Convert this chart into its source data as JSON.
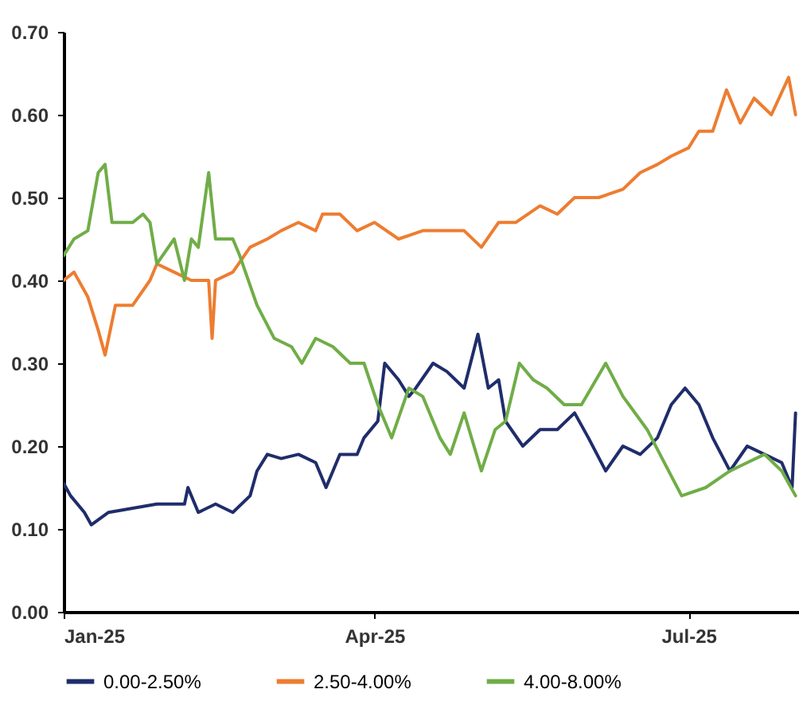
{
  "chart_data": {
    "type": "line",
    "ylim": [
      0,
      0.7
    ],
    "yticks": [
      {
        "value": 0,
        "label": "0.00"
      },
      {
        "value": 0.1,
        "label": "0.10"
      },
      {
        "value": 0.2,
        "label": "0.20"
      },
      {
        "value": 0.3,
        "label": "0.30"
      },
      {
        "value": 0.4,
        "label": "0.40"
      },
      {
        "value": 0.5,
        "label": "0.50"
      },
      {
        "value": 0.6,
        "label": "0.60"
      },
      {
        "value": 0.7,
        "label": "0.70"
      }
    ],
    "xlim": [
      "2025-01-01",
      "2025-08-02"
    ],
    "xticks": [
      {
        "value": "2025-01-01",
        "label": "Jan-25"
      },
      {
        "value": "2025-04-01",
        "label": "Apr-25"
      },
      {
        "value": "2025-07-01",
        "label": "Jul-25"
      }
    ],
    "grid": false,
    "legend": "bottom",
    "marker": "none",
    "line_style": "solid",
    "series": [
      {
        "name": "0.00-2.50%",
        "color": "#1f2d6b",
        "x": [
          "2025-01-01",
          "2025-01-03",
          "2025-01-07",
          "2025-01-09",
          "2025-01-14",
          "2025-01-21",
          "2025-01-28",
          "2025-02-05",
          "2025-02-06",
          "2025-02-09",
          "2025-02-14",
          "2025-02-19",
          "2025-02-24",
          "2025-02-26",
          "2025-03-01",
          "2025-03-05",
          "2025-03-10",
          "2025-03-15",
          "2025-03-18",
          "2025-03-22",
          "2025-03-27",
          "2025-03-29",
          "2025-04-02",
          "2025-04-04",
          "2025-04-08",
          "2025-04-11",
          "2025-04-13",
          "2025-04-18",
          "2025-04-22",
          "2025-04-27",
          "2025-05-01",
          "2025-05-04",
          "2025-05-07",
          "2025-05-09",
          "2025-05-14",
          "2025-05-19",
          "2025-05-24",
          "2025-05-29",
          "2025-06-02",
          "2025-06-07",
          "2025-06-12",
          "2025-06-17",
          "2025-06-22",
          "2025-06-26",
          "2025-06-30",
          "2025-07-04",
          "2025-07-08",
          "2025-07-13",
          "2025-07-18",
          "2025-07-23",
          "2025-07-28",
          "2025-07-31",
          "2025-08-01"
        ],
        "values": [
          0.155,
          0.14,
          0.12,
          0.105,
          0.12,
          0.125,
          0.13,
          0.13,
          0.15,
          0.12,
          0.13,
          0.12,
          0.14,
          0.17,
          0.19,
          0.185,
          0.19,
          0.18,
          0.15,
          0.19,
          0.19,
          0.21,
          0.23,
          0.3,
          0.28,
          0.26,
          0.27,
          0.3,
          0.29,
          0.27,
          0.335,
          0.27,
          0.28,
          0.23,
          0.2,
          0.22,
          0.22,
          0.24,
          0.21,
          0.17,
          0.2,
          0.19,
          0.21,
          0.25,
          0.27,
          0.25,
          0.21,
          0.17,
          0.2,
          0.19,
          0.18,
          0.15,
          0.24
        ]
      },
      {
        "name": "2.50-4.00%",
        "color": "#ed7d31",
        "x": [
          "2025-01-01",
          "2025-01-04",
          "2025-01-08",
          "2025-01-11",
          "2025-01-13",
          "2025-01-16",
          "2025-01-21",
          "2025-01-26",
          "2025-01-28",
          "2025-02-02",
          "2025-02-07",
          "2025-02-12",
          "2025-02-13",
          "2025-02-14",
          "2025-02-19",
          "2025-02-24",
          "2025-03-01",
          "2025-03-05",
          "2025-03-10",
          "2025-03-15",
          "2025-03-17",
          "2025-03-22",
          "2025-03-27",
          "2025-04-01",
          "2025-04-08",
          "2025-04-15",
          "2025-04-22",
          "2025-04-27",
          "2025-05-02",
          "2025-05-07",
          "2025-05-12",
          "2025-05-19",
          "2025-05-24",
          "2025-05-29",
          "2025-06-05",
          "2025-06-12",
          "2025-06-17",
          "2025-06-22",
          "2025-06-26",
          "2025-07-01",
          "2025-07-04",
          "2025-07-08",
          "2025-07-12",
          "2025-07-16",
          "2025-07-20",
          "2025-07-25",
          "2025-07-30",
          "2025-08-01"
        ],
        "values": [
          0.4,
          0.41,
          0.38,
          0.34,
          0.31,
          0.37,
          0.37,
          0.4,
          0.42,
          0.41,
          0.4,
          0.4,
          0.33,
          0.4,
          0.41,
          0.44,
          0.45,
          0.46,
          0.47,
          0.46,
          0.48,
          0.48,
          0.46,
          0.47,
          0.45,
          0.46,
          0.46,
          0.46,
          0.44,
          0.47,
          0.47,
          0.49,
          0.48,
          0.5,
          0.5,
          0.51,
          0.53,
          0.54,
          0.55,
          0.56,
          0.58,
          0.58,
          0.63,
          0.59,
          0.62,
          0.6,
          0.645,
          0.6
        ]
      },
      {
        "name": "4.00-8.00%",
        "color": "#70ad47",
        "x": [
          "2025-01-01",
          "2025-01-04",
          "2025-01-08",
          "2025-01-11",
          "2025-01-13",
          "2025-01-15",
          "2025-01-21",
          "2025-01-24",
          "2025-01-26",
          "2025-01-28",
          "2025-02-02",
          "2025-02-05",
          "2025-02-07",
          "2025-02-09",
          "2025-02-12",
          "2025-02-14",
          "2025-02-19",
          "2025-02-21",
          "2025-02-26",
          "2025-03-03",
          "2025-03-08",
          "2025-03-11",
          "2025-03-15",
          "2025-03-20",
          "2025-03-25",
          "2025-03-29",
          "2025-04-02",
          "2025-04-06",
          "2025-04-11",
          "2025-04-15",
          "2025-04-20",
          "2025-04-23",
          "2025-04-27",
          "2025-05-02",
          "2025-05-06",
          "2025-05-09",
          "2025-05-13",
          "2025-05-17",
          "2025-05-21",
          "2025-05-26",
          "2025-05-31",
          "2025-06-07",
          "2025-06-12",
          "2025-06-19",
          "2025-06-24",
          "2025-06-29",
          "2025-07-06",
          "2025-07-13",
          "2025-07-18",
          "2025-07-23",
          "2025-07-28",
          "2025-08-01"
        ],
        "values": [
          0.43,
          0.45,
          0.46,
          0.53,
          0.54,
          0.47,
          0.47,
          0.48,
          0.47,
          0.42,
          0.45,
          0.4,
          0.45,
          0.44,
          0.53,
          0.45,
          0.45,
          0.43,
          0.37,
          0.33,
          0.32,
          0.3,
          0.33,
          0.32,
          0.3,
          0.3,
          0.25,
          0.21,
          0.27,
          0.26,
          0.21,
          0.19,
          0.24,
          0.17,
          0.22,
          0.23,
          0.3,
          0.28,
          0.27,
          0.25,
          0.25,
          0.3,
          0.26,
          0.22,
          0.18,
          0.14,
          0.15,
          0.17,
          0.18,
          0.19,
          0.17,
          0.14
        ]
      }
    ]
  }
}
